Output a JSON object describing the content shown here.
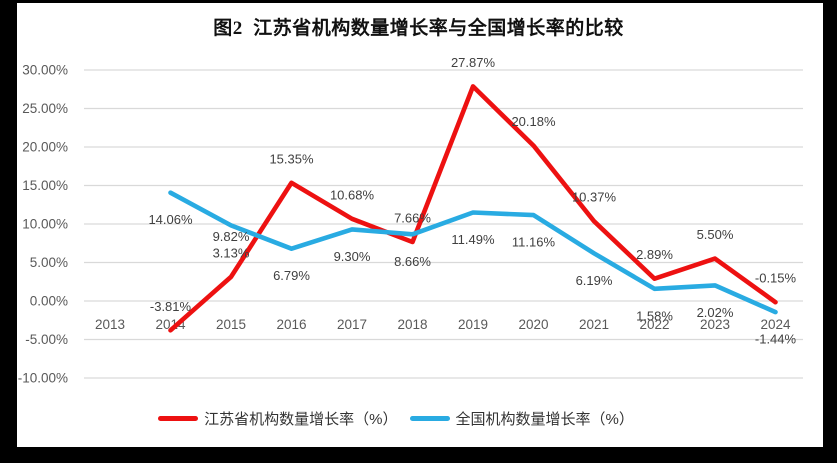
{
  "chart_data": {
    "type": "line",
    "title": "图2  江苏省机构数量增长率与全国增长率的比较",
    "years": [
      "2013",
      "2014",
      "2015",
      "2016",
      "2017",
      "2018",
      "2019",
      "2020",
      "2021",
      "2022",
      "2023",
      "2024"
    ],
    "series": [
      {
        "name": "江苏省机构数量增长率（%）",
        "color": "#ED1111",
        "label_side": "above",
        "values": [
          null,
          -3.81,
          3.13,
          15.35,
          10.68,
          7.66,
          27.87,
          20.18,
          10.37,
          2.89,
          5.5,
          -0.15
        ]
      },
      {
        "name": "全国机构数量增长率（%）",
        "color": "#29ABE2",
        "label_side": "below",
        "values": [
          null,
          14.06,
          9.82,
          6.79,
          9.3,
          8.66,
          11.49,
          11.16,
          6.19,
          1.58,
          2.02,
          -1.44
        ]
      }
    ],
    "y_axis": {
      "min": -10,
      "max": 30,
      "step": 5,
      "tick_format": "0.00%"
    },
    "grid": "horizontal",
    "legend_position": "bottom",
    "colors": {
      "gridline": "#d9d9d9",
      "axis_text": "#595959",
      "data_label_text": "#404040"
    }
  }
}
